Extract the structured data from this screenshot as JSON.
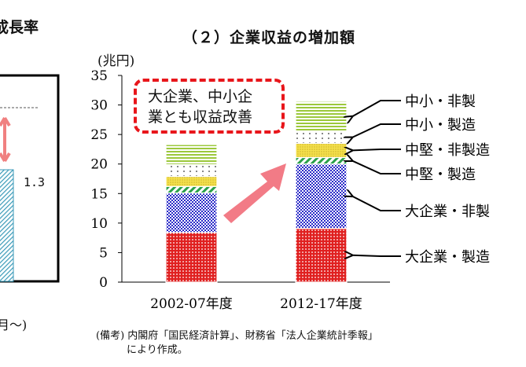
{
  "left_panel": {
    "title_fragment": "成長率",
    "value_label": "1.3",
    "x_fragment": "月～)"
  },
  "chart_data": {
    "type": "bar",
    "stacked": true,
    "title": "（２）企業収益の増加額",
    "ylabel": "(兆円)",
    "ylim": [
      0,
      35
    ],
    "yticks": [
      0,
      5,
      10,
      15,
      20,
      25,
      30,
      35
    ],
    "categories": [
      "2002-07年度",
      "2012-17年度"
    ],
    "series": [
      {
        "name": "大企業・製造",
        "values": [
          8.4,
          9.1
        ],
        "color": "#e02020",
        "pattern": "dots"
      },
      {
        "name": "大企業・非製",
        "values": [
          6.7,
          10.9
        ],
        "color": "#2a2ac8",
        "pattern": "checker"
      },
      {
        "name": "中堅・製造",
        "values": [
          1.1,
          1.1
        ],
        "color": "#2aa04a",
        "pattern": "diagonal"
      },
      {
        "name": "中堅・非製造",
        "values": [
          1.7,
          2.4
        ],
        "color": "#f0d840",
        "pattern": "fine-dots"
      },
      {
        "name": "中小・製造",
        "values": [
          2.0,
          2.0
        ],
        "color": "#444444",
        "pattern": "sparse-dots"
      },
      {
        "name": "中小・非製",
        "values": [
          3.4,
          5.1
        ],
        "color": "#9cc83c",
        "pattern": "horizontal-lines"
      }
    ],
    "grid": false,
    "legend": "right, arrows to segments of second bar",
    "annotation": {
      "callout_lines": [
        "大企業、中小企",
        "業とも収益改善"
      ],
      "arrow": "red-diagonal"
    }
  },
  "note": {
    "lines": [
      "(備考) 内閣府「国民経済計算」、財務省「法人企業統計季報」",
      "　　　により作成。"
    ]
  }
}
